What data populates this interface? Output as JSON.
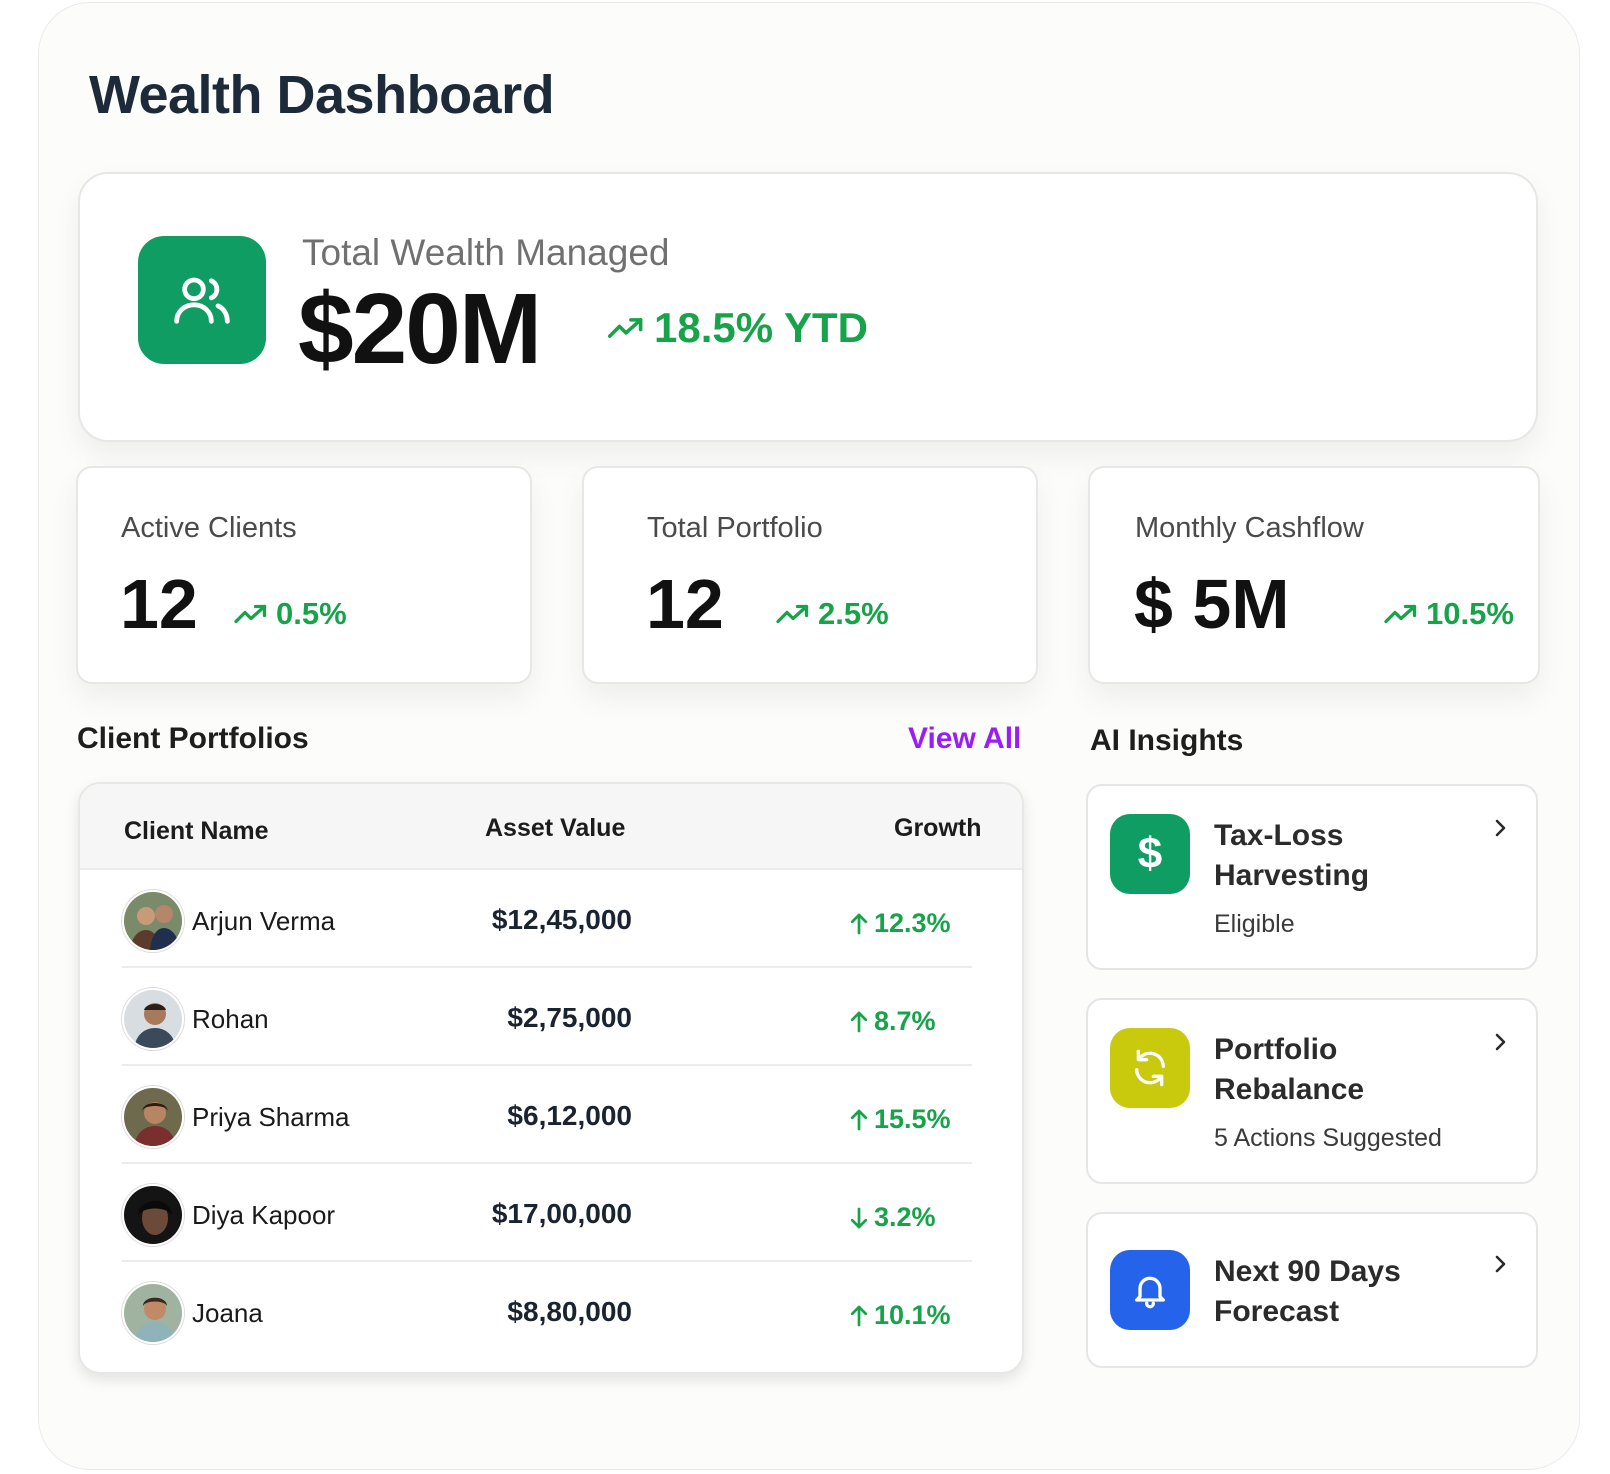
{
  "page": {
    "title": "Wealth Dashboard"
  },
  "hero": {
    "label": "Total Wealth Managed",
    "value": "$20M",
    "change": "18.5% YTD",
    "icon": "users-icon",
    "icon_bg": "#0f9d63"
  },
  "stats": [
    {
      "label": "Active Clients",
      "value": "12",
      "change": "0.5%"
    },
    {
      "label": "Total Portfolio",
      "value": "12",
      "change": "2.5%"
    },
    {
      "label": "Monthly Cashflow",
      "value": "$ 5M",
      "change": "10.5%"
    }
  ],
  "portfolios": {
    "title": "Client Portfolios",
    "view_all": "View All",
    "columns": [
      "Client Name",
      "Asset Value",
      "Growth"
    ],
    "rows": [
      {
        "name": "Arjun Verma",
        "amount": "$12,45,000",
        "growth": "12.3%",
        "direction": "up"
      },
      {
        "name": "Rohan",
        "amount": "$2,75,000",
        "growth": "8.7%",
        "direction": "up"
      },
      {
        "name": "Priya Sharma",
        "amount": "$6,12,000",
        "growth": "15.5%",
        "direction": "up"
      },
      {
        "name": "Diya Kapoor",
        "amount": "$17,00,000",
        "growth": "3.2%",
        "direction": "down"
      },
      {
        "name": "Joana",
        "amount": "$8,80,000",
        "growth": "10.1%",
        "direction": "up"
      }
    ]
  },
  "insights": {
    "title": "AI Insights",
    "items": [
      {
        "title_line1": "Tax-Loss",
        "title_line2": "Harvesting",
        "subtitle": "Eligible",
        "icon": "dollar-icon",
        "color": "#0f9d63"
      },
      {
        "title_line1": "Portfolio",
        "title_line2": "Rebalance",
        "subtitle": "5 Actions Suggested",
        "icon": "refresh-icon",
        "color": "#c9c90e"
      },
      {
        "title_line1": "Next 90 Days",
        "title_line2": "Forecast",
        "subtitle": "",
        "icon": "bell-icon",
        "color": "#2563eb"
      }
    ]
  },
  "colors": {
    "positive": "#16a34a",
    "accent_link": "#9b1df5",
    "title": "#1c2a3a"
  }
}
